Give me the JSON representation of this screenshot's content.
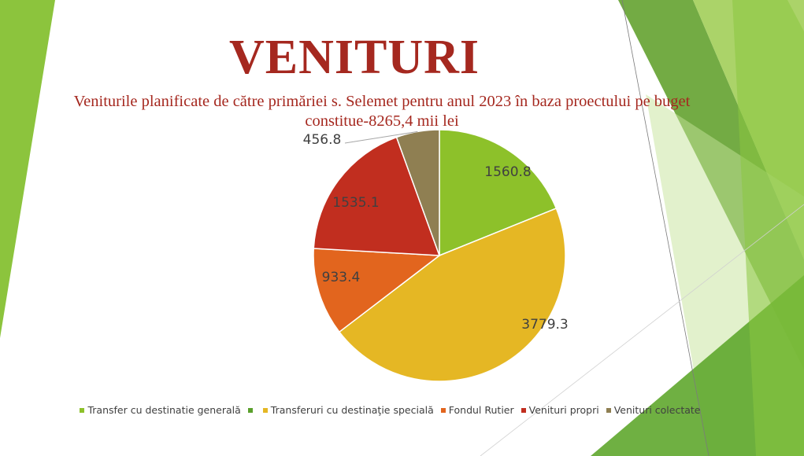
{
  "title": "VENITURI",
  "subtitle": "Veniturile planificate de către primăriei s. Selemet pentru anul 2023 în baza proectului pe buget constitue-8265,4 mii lei",
  "chart_data": {
    "type": "pie",
    "slices": [
      {
        "label": "Transfer cu destinatie  generală",
        "value": 1560.8,
        "display": "1560.8",
        "color": "#8dc12a"
      },
      {
        "label": "Transferuri cu destinaţie specială",
        "value": 3779.3,
        "display": "3779.3",
        "color": "#e5b724"
      },
      {
        "label": "Fondul Rutier",
        "value": 933.4,
        "display": "933.4",
        "color": "#e2651e"
      },
      {
        "label": "Venituri propri",
        "value": 1535.1,
        "display": "1535.1",
        "color": "#c12e1f"
      },
      {
        "label": "Venituri colectate",
        "value": 456.8,
        "display": "456.8",
        "color": "#8f7f52"
      }
    ],
    "legend": {
      "position": "bottom",
      "entries": [
        {
          "label": "Transfer cu destinatie  generală",
          "color": "#8dc12a"
        },
        {
          "label": "",
          "color": "#5aa02c"
        },
        {
          "label": "Transferuri cu destinaţie specială",
          "color": "#e5b724"
        },
        {
          "label": "Fondul Rutier",
          "color": "#e2651e"
        },
        {
          "label": "Venituri propri",
          "color": "#c12e1f"
        },
        {
          "label": "Venituri colectate",
          "color": "#8f7f52"
        }
      ]
    }
  }
}
